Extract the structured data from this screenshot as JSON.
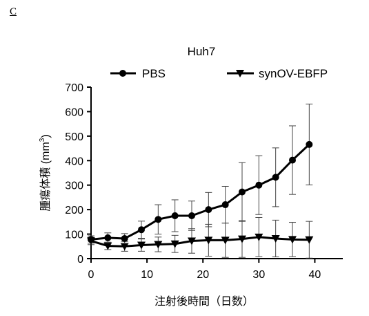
{
  "panel_label": "C",
  "chart_data": {
    "type": "line",
    "title": "Huh7",
    "xlabel": "注射後時間（日数）",
    "ylabel": "腫瘍体積 (mm3)",
    "ylabel_main": "腫瘍体積 (mm",
    "ylabel_sup": "3",
    "ylabel_close": ")",
    "xlim": [
      0,
      45
    ],
    "ylim": [
      0,
      700
    ],
    "xticks": [
      0,
      10,
      20,
      30,
      40
    ],
    "yticks": [
      0,
      100,
      200,
      300,
      400,
      500,
      600,
      700
    ],
    "grid": false,
    "legend_position": "top",
    "x": [
      0,
      3,
      6,
      9,
      12,
      15,
      18,
      21,
      24,
      27,
      30,
      33,
      36,
      39
    ],
    "series": [
      {
        "name": "PBS",
        "marker": "circle",
        "values": [
          78,
          85,
          82,
          118,
          160,
          175,
          175,
          200,
          220,
          272,
          300,
          332,
          402,
          466
        ],
        "err": [
          15,
          20,
          20,
          35,
          60,
          65,
          60,
          70,
          75,
          120,
          120,
          120,
          140,
          165
        ]
      },
      {
        "name": "synOV-EBFP",
        "marker": "triangle-down",
        "values": [
          72,
          52,
          50,
          55,
          58,
          60,
          72,
          75,
          75,
          80,
          88,
          82,
          78,
          77
        ],
        "err": [
          15,
          15,
          20,
          25,
          30,
          35,
          50,
          65,
          70,
          75,
          80,
          75,
          70,
          75
        ]
      }
    ]
  }
}
